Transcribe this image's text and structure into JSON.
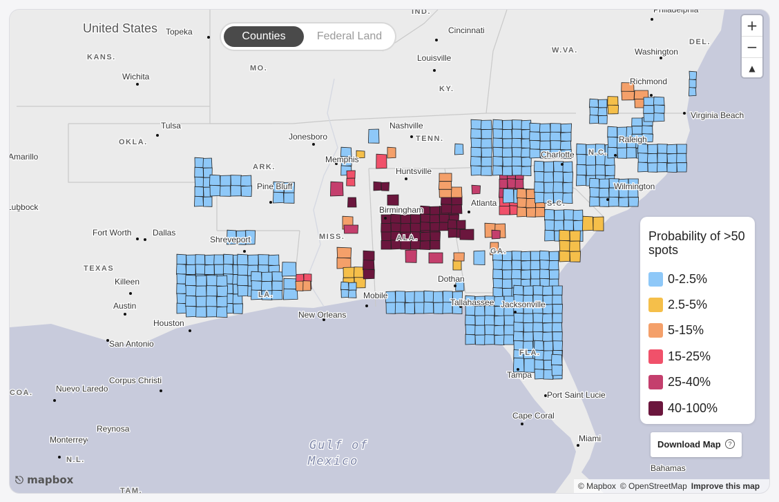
{
  "toggle": {
    "options": [
      "Counties",
      "Federal Land"
    ],
    "active": "Counties"
  },
  "zoom": {
    "in": "+",
    "out": "−",
    "compass": "▲"
  },
  "legend": {
    "title": "Probability of >50 spots",
    "items": [
      {
        "label": "0-2.5%",
        "color": "#8ec8f8"
      },
      {
        "label": "2.5-5%",
        "color": "#f5bf4a"
      },
      {
        "label": "5-15%",
        "color": "#f4a06a"
      },
      {
        "label": "15-25%",
        "color": "#f0516a"
      },
      {
        "label": "25-40%",
        "color": "#c43f6d"
      },
      {
        "label": "40-100%",
        "color": "#6b163d"
      }
    ]
  },
  "download": {
    "label": "Download Map",
    "help": "?"
  },
  "attribution": {
    "mapbox": "© Mapbox",
    "osm": "© OpenStreetMap",
    "improve": "Improve this map"
  },
  "logo": "mapbox",
  "map_labels": {
    "countries": [
      "United States"
    ],
    "states": [
      "KANS.",
      "MO.",
      "KY.",
      "W.VA.",
      "OKLA.",
      "ARK.",
      "TENN.",
      "N.C.",
      "S.C.",
      "MISS.",
      "ALA.",
      "GA.",
      "TEXAS",
      "LA.",
      "FLA.",
      "COA.",
      "N.L.",
      "TAM.",
      "DEL.",
      "IND."
    ],
    "cities": [
      "Topeka",
      "Cincinnati",
      "Washington",
      "Philadelphia",
      "Louisville",
      "Richmond",
      "Virginia Beach",
      "Wichita",
      "Tulsa",
      "Nashville",
      "Jonesboro",
      "Raleigh",
      "Charlotte",
      "Amarillo",
      "Memphis",
      "Huntsville",
      "Pine Bluff",
      "Wilmington",
      "Lubbock",
      "Birmingham",
      "Atlanta",
      "Fort Worth",
      "Dallas",
      "Shreveport",
      "Killeen",
      "Dothan",
      "Mobile",
      "Austin",
      "Tallahassee",
      "Jacksonville",
      "Houston",
      "New Orleans",
      "San Antonio",
      "Tampa",
      "Corpus Christi",
      "Port Saint Lucie",
      "Nuevo Laredo",
      "Cape Coral",
      "Reynosa",
      "Miami",
      "Monterrey",
      "Bahamas"
    ],
    "water": [
      "Gulf of",
      "Mexico"
    ]
  }
}
